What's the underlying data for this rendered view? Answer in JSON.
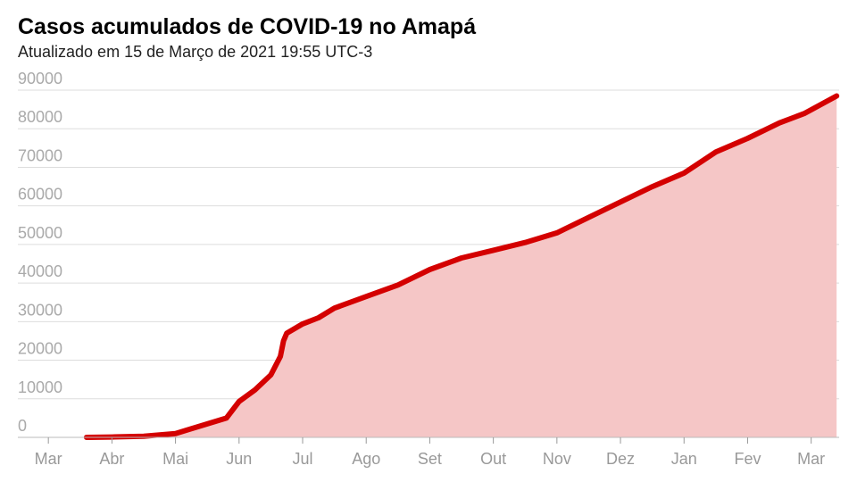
{
  "chart_data": {
    "type": "area",
    "title": "Casos acumulados de COVID-19 no Amapá",
    "subtitle": "Atualizado em 15 de Março de 2021 19:55 UTC-3",
    "color": "#d40000",
    "fill_color": "#f5c6c6",
    "grid": true,
    "x": [
      0.6,
      1.0,
      1.5,
      2.0,
      2.2,
      2.5,
      2.8,
      3.0,
      3.25,
      3.5,
      3.65,
      3.7,
      3.75,
      4.0,
      4.25,
      4.5,
      4.75,
      5.0,
      5.5,
      6.0,
      6.5,
      7.0,
      7.5,
      8.0,
      8.5,
      9.0,
      9.5,
      10.0,
      10.5,
      11.0,
      11.5,
      11.9,
      12.4
    ],
    "values": [
      0,
      100,
      300,
      1000,
      2000,
      3500,
      5000,
      9300,
      12300,
      16200,
      21000,
      25000,
      27000,
      29400,
      31000,
      33500,
      35000,
      36500,
      39500,
      43500,
      46500,
      48500,
      50500,
      53000,
      57000,
      61000,
      65000,
      68500,
      74000,
      77500,
      81500,
      84000,
      88500
    ],
    "xlim": [
      -0.48,
      12.44
    ],
    "xticks": [
      {
        "value": 0,
        "label": "Mar"
      },
      {
        "value": 1,
        "label": "Abr"
      },
      {
        "value": 2,
        "label": "Mai"
      },
      {
        "value": 3,
        "label": "Jun"
      },
      {
        "value": 4,
        "label": "Jul"
      },
      {
        "value": 5,
        "label": "Ago"
      },
      {
        "value": 6,
        "label": "Set"
      },
      {
        "value": 7,
        "label": "Out"
      },
      {
        "value": 8,
        "label": "Nov"
      },
      {
        "value": 9,
        "label": "Dez"
      },
      {
        "value": 10,
        "label": "Jan"
      },
      {
        "value": 11,
        "label": "Fev"
      },
      {
        "value": 12,
        "label": "Mar"
      }
    ],
    "ylim": [
      0,
      90000
    ],
    "yticks": [
      0,
      10000,
      20000,
      30000,
      40000,
      50000,
      60000,
      70000,
      80000,
      90000
    ]
  }
}
